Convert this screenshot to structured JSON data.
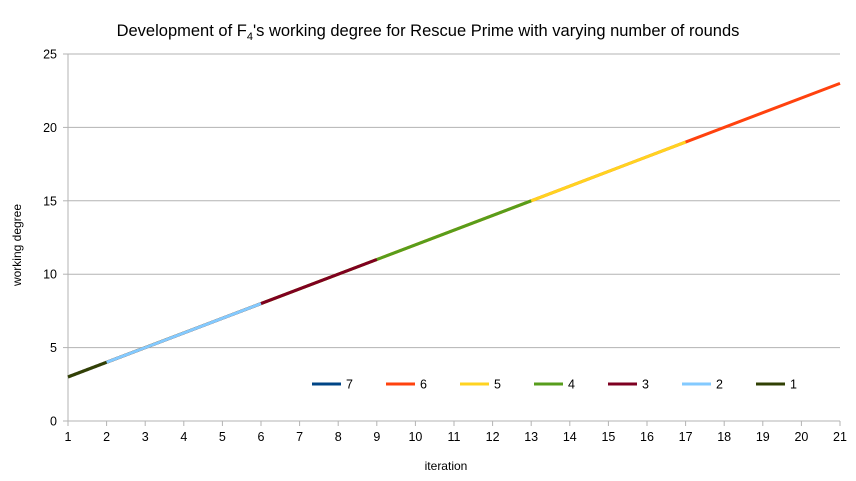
{
  "chart_data": {
    "type": "line",
    "title": {
      "prefix": "Development of F",
      "subscript": "4",
      "suffix": "'s working degree for Rescue Prime with varying number of rounds"
    },
    "xlabel": "iteration",
    "ylabel": "working degree",
    "xlim": [
      1,
      21
    ],
    "ylim": [
      0,
      25
    ],
    "x_ticks": [
      1,
      2,
      3,
      4,
      5,
      6,
      7,
      8,
      9,
      10,
      11,
      12,
      13,
      14,
      15,
      16,
      17,
      18,
      19,
      20,
      21
    ],
    "y_ticks": [
      0,
      5,
      10,
      15,
      20,
      25
    ],
    "grid": "horizontal",
    "legend_position": "inside-bottom",
    "series": [
      {
        "name": "7",
        "color": "#004586",
        "x": [
          1,
          2
        ],
        "y": [
          3,
          4
        ]
      },
      {
        "name": "6",
        "color": "#ff420e",
        "x": [
          1,
          5,
          9,
          13,
          17,
          21
        ],
        "y": [
          3,
          7,
          11,
          15,
          19,
          23
        ]
      },
      {
        "name": "5",
        "color": "#ffd320",
        "x": [
          1,
          5,
          9,
          13,
          17
        ],
        "y": [
          3,
          7,
          11,
          15,
          19
        ]
      },
      {
        "name": "4",
        "color": "#579d1c",
        "x": [
          1,
          5,
          9,
          13
        ],
        "y": [
          3,
          7,
          11,
          15
        ]
      },
      {
        "name": "3",
        "color": "#7e0021",
        "x": [
          1,
          3,
          6,
          9
        ],
        "y": [
          3,
          5,
          8,
          11
        ]
      },
      {
        "name": "2",
        "color": "#83caff",
        "x": [
          1,
          3,
          6
        ],
        "y": [
          3,
          5,
          8
        ]
      },
      {
        "name": "1",
        "color": "#314004",
        "x": [
          1,
          2
        ],
        "y": [
          3,
          4
        ]
      }
    ]
  }
}
